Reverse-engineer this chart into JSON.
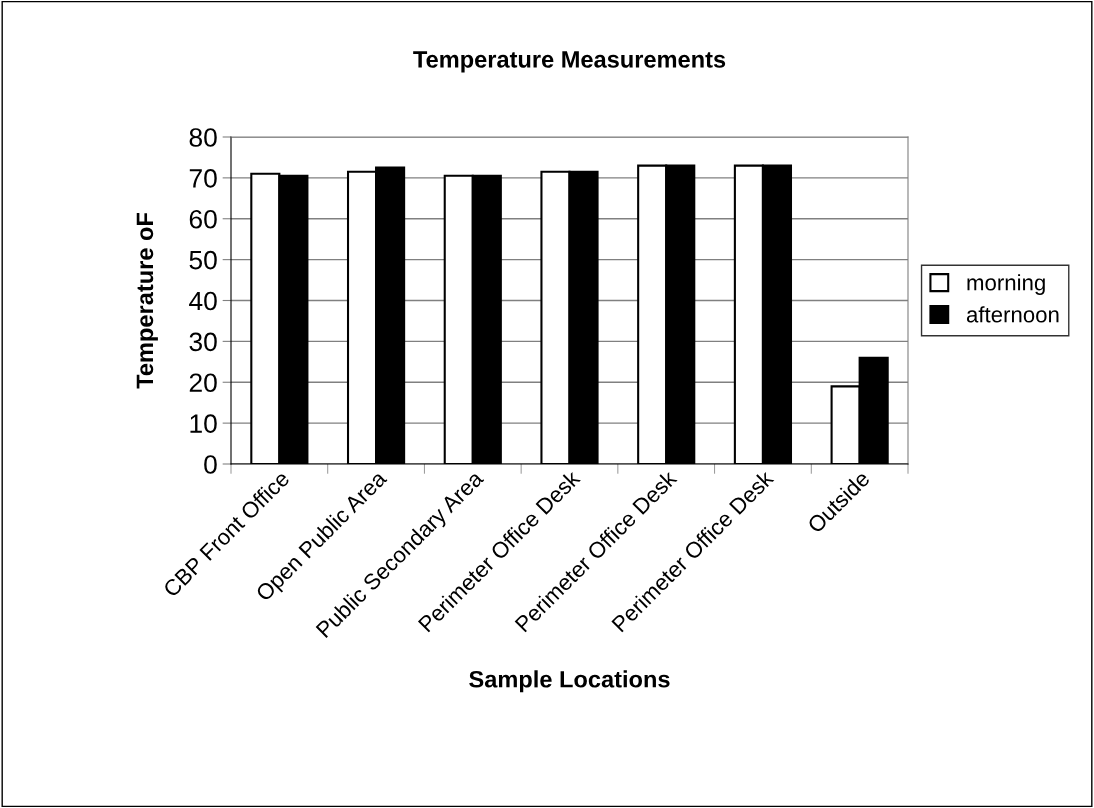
{
  "chart_data": {
    "type": "bar",
    "title": "Temperature Measurements",
    "xlabel": "Sample Locations",
    "ylabel": "Temperature oF",
    "categories": [
      "CBP Front Office",
      "Open Public Area",
      "Public Secondary Area",
      "Perimeter Office Desk",
      "Perimeter Office Desk",
      "Perimeter Office Desk",
      "Outside"
    ],
    "series": [
      {
        "name": "morning",
        "color": "#ffffff",
        "values": [
          71,
          71.5,
          70.5,
          71.5,
          73,
          73,
          19
        ]
      },
      {
        "name": "afternoon",
        "color": "#000000",
        "values": [
          70.5,
          72.5,
          70.5,
          71.5,
          73,
          73,
          26
        ]
      }
    ],
    "ylim": [
      0,
      80
    ],
    "yticks": [
      0,
      10,
      20,
      30,
      40,
      50,
      60,
      70,
      80
    ],
    "grid": "y",
    "legend": "right"
  }
}
